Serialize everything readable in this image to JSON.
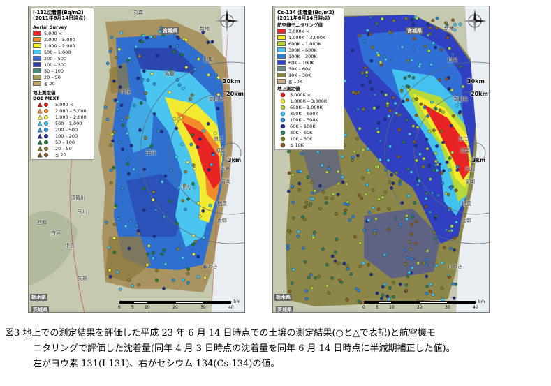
{
  "left_map": {
    "title": "I-131沈着量(Bq/m2)",
    "date": "(2011年6月14日時点)",
    "aerial_label": "Aerial Survey",
    "aerial_items": [
      {
        "label": "5,000 <",
        "color": "#ee2222"
      },
      {
        "label": "2,000 – 5,000",
        "color": "#f58a2a"
      },
      {
        "label": "1,000 – 2,000",
        "color": "#f7ee2a"
      },
      {
        "label": "500 – 1,000",
        "color": "#3fc2ef"
      },
      {
        "label": "200 – 500",
        "color": "#3b6fd6"
      },
      {
        "label": "100 – 200",
        "color": "#3340a8"
      },
      {
        "label": "50 – 100",
        "color": "#4b8a7a"
      },
      {
        "label": "20 – 50",
        "color": "#a89a5a"
      },
      {
        "label": "≦ 20",
        "color": "#c2a46a"
      }
    ],
    "ground_label_1": "地上測定値",
    "ground_label_2": "DOE MEXT",
    "ground_items": [
      {
        "label": "5,000 <",
        "color": "#dd1111"
      },
      {
        "label": "2,000 – 5,000",
        "color": "#f58a2a"
      },
      {
        "label": "1,000 – 2,000",
        "color": "#e8e84a"
      },
      {
        "label": "500 – 1,000",
        "color": "#3fc2ef"
      },
      {
        "label": "200 – 500",
        "color": "#2d8fd6"
      },
      {
        "label": "100 – 200",
        "color": "#1f2f90"
      },
      {
        "label": "50 – 100",
        "color": "#1f7a3a"
      },
      {
        "label": "20 – 50",
        "color": "#8a7a3a"
      },
      {
        "label": "≦ 20",
        "color": "#7a5020"
      }
    ],
    "places": [
      "丸森",
      "新地",
      "宮城県",
      "相馬",
      "飯舘",
      "南相馬",
      "川俣",
      "浪江",
      "双葉",
      "大熊",
      "富岡",
      "田村",
      "川内",
      "楢葉",
      "広野",
      "いわき",
      "須賀川",
      "玉川",
      "白河",
      "中島",
      "矢祭",
      "栃木県",
      "茨城県",
      "西郷"
    ],
    "ring_labels": [
      "30km",
      "20km",
      "3km"
    ],
    "scale_ticks": [
      "0",
      "5",
      "10",
      "20",
      "30",
      "40"
    ],
    "scale_unit": "km"
  },
  "right_map": {
    "title": "Cs-134 沈着量(Bq/m2)",
    "date": "(2011年6月14日時点)",
    "aerial_label": "航空機モニタリング値",
    "aerial_items": [
      {
        "label": "3,000K <",
        "color": "#ee2222"
      },
      {
        "label": "1,000K – 3,000K",
        "color": "#f7ee2a"
      },
      {
        "label": "600K – 1,000K",
        "color": "#b5d93a"
      },
      {
        "label": "300K – 600K",
        "color": "#3fc2ef"
      },
      {
        "label": "100K – 300K",
        "color": "#2d7fd6"
      },
      {
        "label": "60K – 100K",
        "color": "#3340c8"
      },
      {
        "label": "30K – 60K",
        "color": "#6a8a8a"
      },
      {
        "label": "10K – 30K",
        "color": "#8a8a3a"
      },
      {
        "label": "≦ 10K",
        "color": "#c9b48a"
      }
    ],
    "ground_label": "地上測定値",
    "ground_items": [
      {
        "label": "3,000K <",
        "color": "#dd1111"
      },
      {
        "label": "1,000K – 3,000K",
        "color": "#f2e020"
      },
      {
        "label": "600K – 1,000K",
        "color": "#a8d040"
      },
      {
        "label": "300K – 600K",
        "color": "#3fc2ef"
      },
      {
        "label": "100K – 300K",
        "color": "#2d7fd6"
      },
      {
        "label": "60K – 100K",
        "color": "#1f2f90"
      },
      {
        "label": "30K – 60K",
        "color": "#2f7a5a"
      },
      {
        "label": "10K – 30K",
        "color": "#7a7a2a"
      },
      {
        "label": "≦ 10K",
        "color": "#8a5a20"
      }
    ],
    "places": [
      "宮城県",
      "新地",
      "相馬",
      "南相馬",
      "浪江",
      "双葉",
      "大熊",
      "富岡",
      "楢葉",
      "広野",
      "いわき",
      "栃木県",
      "茨城県"
    ],
    "ring_labels": [
      "30km",
      "20km",
      "3km"
    ],
    "scale_ticks": [
      "0",
      "5",
      "10",
      "20",
      "30",
      "40"
    ],
    "scale_unit": "km"
  },
  "caption": {
    "line1": "図3 地上での測定結果を評価した平成 23 年 6 月 14 日時点での土壌の測定結果(○と△で表記)と航空機モ",
    "line2": "ニタリングで評価した沈着量(同年 4 月 3 日時点の沈着量を同年 6 月 14 日時点に半減期補正した値)。",
    "line3": "左がヨウ素 131(I-131)、右がセシウム 134(Cs-134)の値。"
  }
}
